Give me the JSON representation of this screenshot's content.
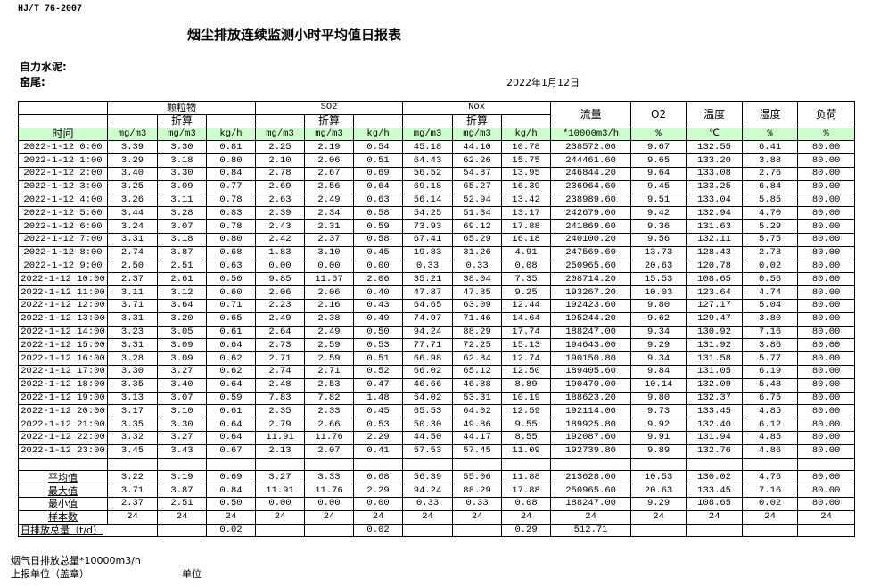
{
  "header": {
    "standard": "HJ/T  76-2007",
    "title": "烟尘排放连续监测小时平均值日报表",
    "company": "自力水泥:",
    "kiln": "窑尾:",
    "date": "2022年1月12日"
  },
  "table": {
    "groups": {
      "particulate": "颗粒物",
      "so2": "SO2",
      "nox": "Nox",
      "flow": "流量",
      "o2": "O2",
      "temp": "温度",
      "humidity": "湿度",
      "load": "负荷"
    },
    "converted": "折算",
    "units": [
      "时间",
      "mg/m3",
      "mg/m3",
      "kg/h",
      "mg/m3",
      "mg/m3",
      "kg/h",
      "mg/m3",
      "mg/m3",
      "kg/h",
      "*10000m3/h",
      "%",
      "℃",
      "%",
      "%"
    ],
    "rows": [
      [
        "2022-1-12 0:00",
        "3.39",
        "3.30",
        "0.81",
        "2.25",
        "2.19",
        "0.54",
        "45.18",
        "44.10",
        "10.78",
        "238572.00",
        "9.67",
        "132.55",
        "6.41",
        "80.00"
      ],
      [
        "2022-1-12 1:00",
        "3.29",
        "3.18",
        "0.80",
        "2.10",
        "2.06",
        "0.51",
        "64.43",
        "62.26",
        "15.75",
        "244461.60",
        "9.65",
        "133.20",
        "3.88",
        "80.00"
      ],
      [
        "2022-1-12 2:00",
        "3.40",
        "3.30",
        "0.84",
        "2.78",
        "2.67",
        "0.69",
        "56.52",
        "54.87",
        "13.95",
        "246844.20",
        "9.64",
        "133.08",
        "2.76",
        "80.00"
      ],
      [
        "2022-1-12 3:00",
        "3.25",
        "3.09",
        "0.77",
        "2.69",
        "2.56",
        "0.64",
        "69.18",
        "65.27",
        "16.39",
        "236964.60",
        "9.45",
        "133.25",
        "6.84",
        "80.00"
      ],
      [
        "2022-1-12 4:00",
        "3.26",
        "3.11",
        "0.78",
        "2.63",
        "2.49",
        "0.63",
        "56.14",
        "52.94",
        "13.42",
        "238989.60",
        "9.51",
        "133.04",
        "5.85",
        "80.00"
      ],
      [
        "2022-1-12 5:00",
        "3.44",
        "3.28",
        "0.83",
        "2.39",
        "2.34",
        "0.58",
        "54.25",
        "51.34",
        "13.17",
        "242679.00",
        "9.42",
        "132.94",
        "4.70",
        "80.00"
      ],
      [
        "2022-1-12 6:00",
        "3.24",
        "3.07",
        "0.78",
        "2.43",
        "2.31",
        "0.59",
        "73.93",
        "69.12",
        "17.88",
        "241869.60",
        "9.36",
        "131.63",
        "5.29",
        "80.00"
      ],
      [
        "2022-1-12 7:00",
        "3.31",
        "3.18",
        "0.80",
        "2.42",
        "2.37",
        "0.58",
        "67.41",
        "65.29",
        "16.18",
        "240100.20",
        "9.56",
        "132.11",
        "5.75",
        "80.00"
      ],
      [
        "2022-1-12 8:00",
        "2.74",
        "3.87",
        "0.68",
        "1.83",
        "3.10",
        "0.45",
        "19.83",
        "31.26",
        "4.91",
        "247569.60",
        "13.73",
        "128.43",
        "2.78",
        "80.00"
      ],
      [
        "2022-1-12 9:00",
        "2.50",
        "2.51",
        "0.63",
        "0.00",
        "0.00",
        "0.00",
        "0.33",
        "0.33",
        "0.08",
        "250965.60",
        "20.63",
        "120.78",
        "0.02",
        "80.00"
      ],
      [
        "2022-1-12 10:00",
        "2.37",
        "2.61",
        "0.50",
        "9.85",
        "11.67",
        "2.06",
        "35.21",
        "38.04",
        "7.35",
        "208714.20",
        "15.53",
        "108.65",
        "0.56",
        "80.00"
      ],
      [
        "2022-1-12 11:00",
        "3.11",
        "3.12",
        "0.60",
        "2.06",
        "2.06",
        "0.40",
        "47.87",
        "47.85",
        "9.25",
        "193267.20",
        "10.03",
        "123.64",
        "4.74",
        "80.00"
      ],
      [
        "2022-1-12 12:00",
        "3.71",
        "3.64",
        "0.71",
        "2.23",
        "2.16",
        "0.43",
        "64.65",
        "63.09",
        "12.44",
        "192423.60",
        "9.80",
        "127.17",
        "5.04",
        "80.00"
      ],
      [
        "2022-1-12 13:00",
        "3.31",
        "3.20",
        "0.65",
        "2.49",
        "2.38",
        "0.49",
        "74.97",
        "71.46",
        "14.64",
        "195244.20",
        "9.62",
        "129.47",
        "3.80",
        "80.00"
      ],
      [
        "2022-1-12 14:00",
        "3.23",
        "3.05",
        "0.61",
        "2.64",
        "2.49",
        "0.50",
        "94.24",
        "88.29",
        "17.74",
        "188247.00",
        "9.34",
        "130.92",
        "7.16",
        "80.00"
      ],
      [
        "2022-1-12 15:00",
        "3.31",
        "3.09",
        "0.64",
        "2.73",
        "2.59",
        "0.53",
        "77.71",
        "72.25",
        "15.13",
        "194643.00",
        "9.29",
        "131.92",
        "3.86",
        "80.00"
      ],
      [
        "2022-1-12 16:00",
        "3.28",
        "3.09",
        "0.62",
        "2.71",
        "2.59",
        "0.51",
        "66.98",
        "62.84",
        "12.74",
        "190150.80",
        "9.34",
        "131.58",
        "5.77",
        "80.00"
      ],
      [
        "2022-1-12 17:00",
        "3.30",
        "3.27",
        "0.62",
        "2.74",
        "2.71",
        "0.52",
        "66.02",
        "65.12",
        "12.50",
        "189405.60",
        "9.84",
        "131.05",
        "6.19",
        "80.00"
      ],
      [
        "2022-1-12 18:00",
        "3.35",
        "3.40",
        "0.64",
        "2.48",
        "2.53",
        "0.47",
        "46.66",
        "46.88",
        "8.89",
        "190470.00",
        "10.14",
        "132.09",
        "5.48",
        "80.00"
      ],
      [
        "2022-1-12 19:00",
        "3.13",
        "3.07",
        "0.59",
        "7.83",
        "7.82",
        "1.48",
        "54.02",
        "53.31",
        "10.19",
        "188623.20",
        "9.80",
        "132.37",
        "6.75",
        "80.00"
      ],
      [
        "2022-1-12 20:00",
        "3.17",
        "3.10",
        "0.61",
        "2.35",
        "2.33",
        "0.45",
        "65.53",
        "64.02",
        "12.59",
        "192114.00",
        "9.73",
        "133.45",
        "4.85",
        "80.00"
      ],
      [
        "2022-1-12 21:00",
        "3.35",
        "3.30",
        "0.64",
        "2.79",
        "2.66",
        "0.53",
        "50.30",
        "49.86",
        "9.55",
        "189925.80",
        "9.92",
        "132.40",
        "6.12",
        "80.00"
      ],
      [
        "2022-1-12 22:00",
        "3.32",
        "3.27",
        "0.64",
        "11.91",
        "11.76",
        "2.29",
        "44.50",
        "44.17",
        "8.55",
        "192087.60",
        "9.91",
        "131.94",
        "4.85",
        "80.00"
      ],
      [
        "2022-1-12 23:00",
        "3.45",
        "3.43",
        "0.67",
        "2.13",
        "2.07",
        "0.41",
        "57.53",
        "57.45",
        "11.09",
        "192739.80",
        "9.89",
        "132.76",
        "4.86",
        "80.00"
      ]
    ],
    "summary": [
      [
        "平均值",
        "3.22",
        "3.19",
        "0.69",
        "3.27",
        "3.33",
        "0.68",
        "56.39",
        "55.06",
        "11.88",
        "213628.00",
        "10.53",
        "130.02",
        "4.76",
        "80.00"
      ],
      [
        "最大值",
        "3.71",
        "3.87",
        "0.84",
        "11.91",
        "11.76",
        "2.29",
        "94.24",
        "88.29",
        "17.88",
        "250965.60",
        "20.63",
        "133.45",
        "7.16",
        "80.00"
      ],
      [
        "最小值",
        "2.37",
        "2.51",
        "0.50",
        "0.00",
        "0.00",
        "0.00",
        "0.33",
        "0.33",
        "0.08",
        "188247.00",
        "9.29",
        "108.65",
        "0.02",
        "80.00"
      ],
      [
        "样本数",
        "24",
        "24",
        "24",
        "24",
        "24",
        "24",
        "24",
        "24",
        "24",
        "24",
        "24",
        "24",
        "24",
        "24"
      ]
    ],
    "daily_total": {
      "label": "日排放总量（t/d）",
      "cells": [
        "",
        "0.02",
        "",
        "",
        "0.02",
        "",
        "",
        "0.29",
        "512.71",
        "",
        "",
        "",
        ""
      ]
    }
  },
  "footer": {
    "flue_gas_total": "烟气日排放总量*10000m3/h",
    "reporting_unit": "上报单位（盖章）",
    "unit": "单位"
  },
  "colors": {
    "header_green": "#ccffcc"
  }
}
